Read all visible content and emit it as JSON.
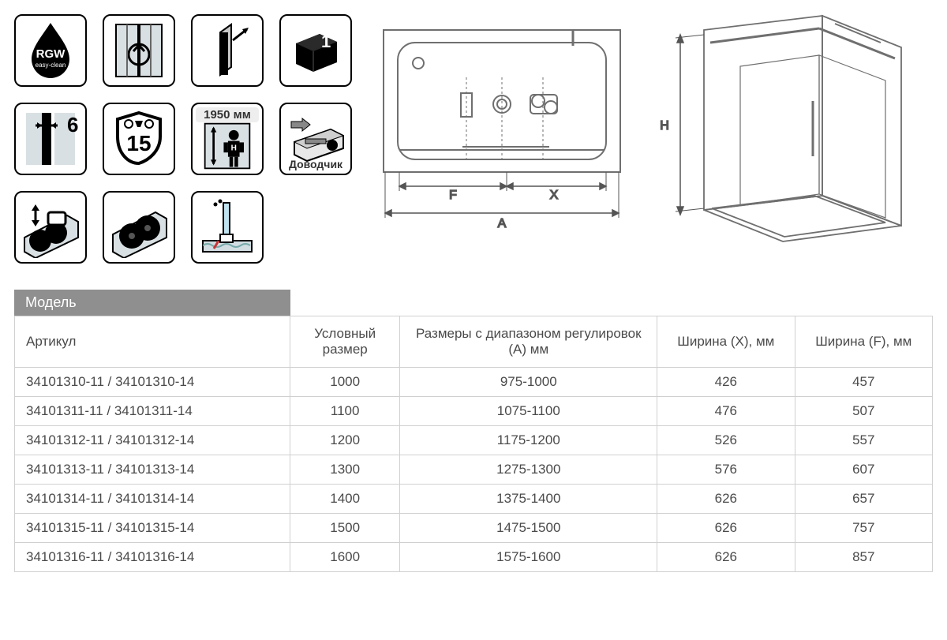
{
  "icons": {
    "rgw_brand": "RGW",
    "rgw_sub": "easy-clean",
    "glass_thickness": "6",
    "warranty_years": "15",
    "height_label_top": "1950 мм",
    "closer": "Доводчик",
    "box_count": "1"
  },
  "diagram": {
    "top_view": {
      "label_F": "F",
      "label_X": "X",
      "label_A": "A",
      "stroke": "#6f6f6f",
      "bg": "#ffffff"
    },
    "iso_view": {
      "label_H": "H",
      "stroke": "#6f6f6f"
    }
  },
  "table": {
    "header_model": "Модель",
    "columns": [
      "Артикул",
      "Условный размер",
      "Размеры с диапазоном регулировок (А) мм",
      "Ширина (Х), мм",
      "Ширина (F), мм"
    ],
    "rows": [
      [
        "34101310-11 / 34101310-14",
        "1000",
        "975-1000",
        "426",
        "457"
      ],
      [
        "34101311-11 / 34101311-14",
        "1100",
        "1075-1100",
        "476",
        "507"
      ],
      [
        "34101312-11 / 34101312-14",
        "1200",
        "1175-1200",
        "526",
        "557"
      ],
      [
        "34101313-11 / 34101313-14",
        "1300",
        "1275-1300",
        "576",
        "607"
      ],
      [
        "34101314-11 / 34101314-14",
        "1400",
        "1375-1400",
        "626",
        "657"
      ],
      [
        "34101315-11 / 34101315-14",
        "1500",
        "1475-1500",
        "626",
        "757"
      ],
      [
        "34101316-11 / 34101316-14",
        "1600",
        "1575-1600",
        "626",
        "857"
      ]
    ],
    "col_widths": [
      "30%",
      "12%",
      "28%",
      "15%",
      "15%"
    ],
    "header_bg": "#8f8f8f",
    "header_fg": "#ffffff",
    "border_color": "#d0d0d0",
    "text_color": "#4a4a4a"
  }
}
